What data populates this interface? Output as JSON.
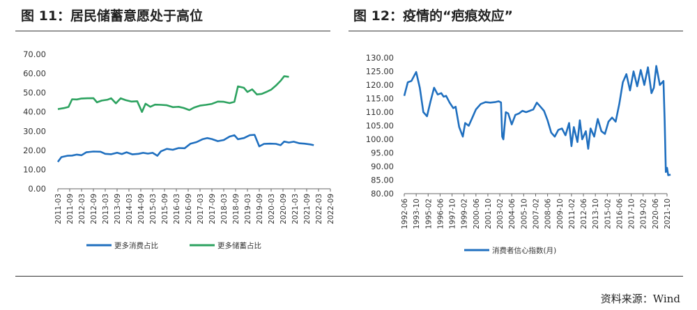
{
  "titles": {
    "left": "图 11：居民储蓄意愿处于高位",
    "right": "图 12：疫情的“疤痕效应”"
  },
  "source": "资料来源：Wind",
  "chart_data": [
    {
      "type": "line",
      "yticks": [
        "0.00",
        "10.00",
        "20.00",
        "30.00",
        "40.00",
        "50.00",
        "60.00",
        "70.00"
      ],
      "ylim": [
        0,
        70
      ],
      "xtick_labels": [
        "2011-03",
        "2011-09",
        "2012-03",
        "2012-09",
        "2013-03",
        "2013-09",
        "2014-03",
        "2014-09",
        "2015-03",
        "2015-09",
        "2016-03",
        "2016-09",
        "2017-03",
        "2017-09",
        "2018-03",
        "2018-09",
        "2019-03",
        "2019-09",
        "2020-03",
        "2020-09",
        "2021-03",
        "2021-09",
        "2022-03",
        "2022-09"
      ],
      "x_index_range": [
        0,
        23
      ],
      "series": [
        {
          "name": "更多消费占比",
          "color": "#1f6fbf",
          "points": [
            [
              0,
              14
            ],
            [
              0.3,
              16.5
            ],
            [
              0.8,
              17.2
            ],
            [
              1.2,
              17.3
            ],
            [
              1.6,
              17.8
            ],
            [
              2,
              17.5
            ],
            [
              2.4,
              19
            ],
            [
              3,
              19.4
            ],
            [
              3.6,
              19.3
            ],
            [
              4,
              18.2
            ],
            [
              4.5,
              18
            ],
            [
              5,
              18.8
            ],
            [
              5.4,
              18.1
            ],
            [
              5.8,
              19
            ],
            [
              6.3,
              17.9
            ],
            [
              6.8,
              18.2
            ],
            [
              7.2,
              18.7
            ],
            [
              7.6,
              18.3
            ],
            [
              8,
              18.7
            ],
            [
              8.4,
              17.2
            ],
            [
              8.7,
              19.5
            ],
            [
              9.2,
              20.8
            ],
            [
              9.7,
              20.3
            ],
            [
              10.2,
              21.2
            ],
            [
              10.7,
              21.1
            ],
            [
              11.2,
              23.5
            ],
            [
              11.7,
              24.3
            ],
            [
              12.2,
              25.8
            ],
            [
              12.6,
              26.4
            ],
            [
              13,
              25.9
            ],
            [
              13.5,
              24.8
            ],
            [
              14,
              25.4
            ],
            [
              14.5,
              27.2
            ],
            [
              14.9,
              27.9
            ],
            [
              15.2,
              25.8
            ],
            [
              15.7,
              26.4
            ],
            [
              16.2,
              27.9
            ],
            [
              16.6,
              28.1
            ],
            [
              17,
              22.1
            ],
            [
              17.4,
              23.4
            ],
            [
              17.9,
              23.5
            ],
            [
              18.4,
              23.4
            ],
            [
              18.8,
              22.7
            ],
            [
              19.1,
              24.6
            ],
            [
              19.5,
              24.1
            ],
            [
              19.9,
              24.5
            ],
            [
              20.4,
              23.7
            ],
            [
              20.8,
              23.5
            ],
            [
              21.3,
              23.1
            ],
            [
              21.6,
              22.7
            ]
          ]
        },
        {
          "name": "更多储蓄占比",
          "color": "#2ca25f",
          "points": [
            [
              0,
              41.5
            ],
            [
              0.5,
              42
            ],
            [
              0.9,
              42.6
            ],
            [
              1.2,
              46.6
            ],
            [
              1.6,
              46.5
            ],
            [
              2,
              47
            ],
            [
              2.5,
              47.1
            ],
            [
              3,
              47.2
            ],
            [
              3.3,
              45
            ],
            [
              3.7,
              45.9
            ],
            [
              4.2,
              46.4
            ],
            [
              4.5,
              47.1
            ],
            [
              4.9,
              44.5
            ],
            [
              5.3,
              47.1
            ],
            [
              5.7,
              46.2
            ],
            [
              6.2,
              45.4
            ],
            [
              6.7,
              45.6
            ],
            [
              7.1,
              40
            ],
            [
              7.4,
              44.3
            ],
            [
              7.8,
              42.7
            ],
            [
              8.2,
              43.8
            ],
            [
              8.7,
              43.7
            ],
            [
              9.2,
              43.5
            ],
            [
              9.7,
              42.5
            ],
            [
              10.2,
              42.7
            ],
            [
              10.6,
              42.1
            ],
            [
              11.1,
              41
            ],
            [
              11.5,
              42.3
            ],
            [
              12,
              43.3
            ],
            [
              12.5,
              43.7
            ],
            [
              13,
              44.2
            ],
            [
              13.5,
              45.4
            ],
            [
              14,
              45.3
            ],
            [
              14.5,
              44.6
            ],
            [
              14.9,
              45.3
            ],
            [
              15.2,
              53.3
            ],
            [
              15.7,
              52.6
            ],
            [
              16,
              50.4
            ],
            [
              16.4,
              51.8
            ],
            [
              16.8,
              49.1
            ],
            [
              17.2,
              49.4
            ],
            [
              17.6,
              50.4
            ],
            [
              18,
              51.6
            ],
            [
              18.4,
              53.7
            ],
            [
              18.8,
              56.2
            ],
            [
              19.1,
              58.6
            ],
            [
              19.5,
              58.3
            ]
          ]
        }
      ],
      "legend_position": "bottom"
    },
    {
      "type": "line",
      "yticks": [
        "80.00",
        "85.00",
        "90.00",
        "95.00",
        "100.00",
        "105.00",
        "110.00",
        "115.00",
        "120.00",
        "125.00",
        "130.00"
      ],
      "ylim": [
        80,
        130
      ],
      "xtick_labels": [
        "1992-06",
        "1993-10",
        "1995-02",
        "1996-06",
        "1997-10",
        "1999-02",
        "2000-06",
        "2001-10",
        "2003-02",
        "2004-06",
        "2005-10",
        "2007-02",
        "2008-06",
        "2009-10",
        "2011-02",
        "2012-06",
        "2013-10",
        "2015-02",
        "2016-06",
        "2017-10",
        "2019-02",
        "2020-06",
        "2021-10"
      ],
      "x_index_range": [
        0,
        22
      ],
      "series": [
        {
          "name": "消费者信心指数(月)",
          "color": "#1f6fbf",
          "points": [
            [
              0,
              116
            ],
            [
              0.3,
              121
            ],
            [
              0.6,
              121.5
            ],
            [
              1,
              124.8
            ],
            [
              1.3,
              119
            ],
            [
              1.6,
              110
            ],
            [
              1.9,
              108.5
            ],
            [
              2.2,
              114
            ],
            [
              2.5,
              119
            ],
            [
              2.8,
              116.5
            ],
            [
              3.1,
              117
            ],
            [
              3.3,
              115.7
            ],
            [
              3.5,
              116
            ],
            [
              3.8,
              113.5
            ],
            [
              4.1,
              111.5
            ],
            [
              4.3,
              112
            ],
            [
              4.6,
              104.5
            ],
            [
              4.9,
              101
            ],
            [
              5.1,
              106
            ],
            [
              5.4,
              105
            ],
            [
              5.7,
              108
            ],
            [
              6,
              111
            ],
            [
              6.4,
              113
            ],
            [
              6.8,
              113.7
            ],
            [
              7.2,
              113.5
            ],
            [
              7.6,
              113.7
            ],
            [
              7.9,
              114
            ],
            [
              8.1,
              113.6
            ],
            [
              8.2,
              101
            ],
            [
              8.3,
              100
            ],
            [
              8.5,
              110
            ],
            [
              8.7,
              109.5
            ],
            [
              9,
              105.5
            ],
            [
              9.3,
              109
            ],
            [
              9.6,
              109.5
            ],
            [
              9.9,
              110.5
            ],
            [
              10.2,
              110
            ],
            [
              10.5,
              110.5
            ],
            [
              10.8,
              111
            ],
            [
              11.1,
              113.5
            ],
            [
              11.4,
              112
            ],
            [
              11.7,
              110.5
            ],
            [
              12,
              107
            ],
            [
              12.3,
              102.5
            ],
            [
              12.6,
              101
            ],
            [
              12.9,
              103.5
            ],
            [
              13.2,
              104
            ],
            [
              13.5,
              101.5
            ],
            [
              13.8,
              106
            ],
            [
              14,
              97.5
            ],
            [
              14.2,
              104.5
            ],
            [
              14.5,
              99
            ],
            [
              14.7,
              107
            ],
            [
              14.9,
              100
            ],
            [
              15.2,
              103
            ],
            [
              15.4,
              96.5
            ],
            [
              15.6,
              104
            ],
            [
              15.9,
              101
            ],
            [
              16.2,
              107.5
            ],
            [
              16.5,
              103
            ],
            [
              16.8,
              102
            ],
            [
              17.1,
              106.5
            ],
            [
              17.4,
              108
            ],
            [
              17.7,
              106.5
            ],
            [
              18,
              113
            ],
            [
              18.3,
              121
            ],
            [
              18.6,
              124
            ],
            [
              18.9,
              118
            ],
            [
              19.2,
              125
            ],
            [
              19.5,
              119.5
            ],
            [
              19.8,
              125.5
            ],
            [
              20.1,
              120
            ],
            [
              20.4,
              126.5
            ],
            [
              20.7,
              117
            ],
            [
              20.9,
              119
            ],
            [
              21.1,
              127
            ],
            [
              21.4,
              120
            ],
            [
              21.7,
              121.5
            ],
            [
              21.8,
              107
            ],
            [
              21.9,
              88
            ],
            [
              22.0,
              89.5
            ],
            [
              22.1,
              86.8
            ],
            [
              22.3,
              87
            ]
          ]
        }
      ],
      "legend_position": "bottom"
    }
  ]
}
